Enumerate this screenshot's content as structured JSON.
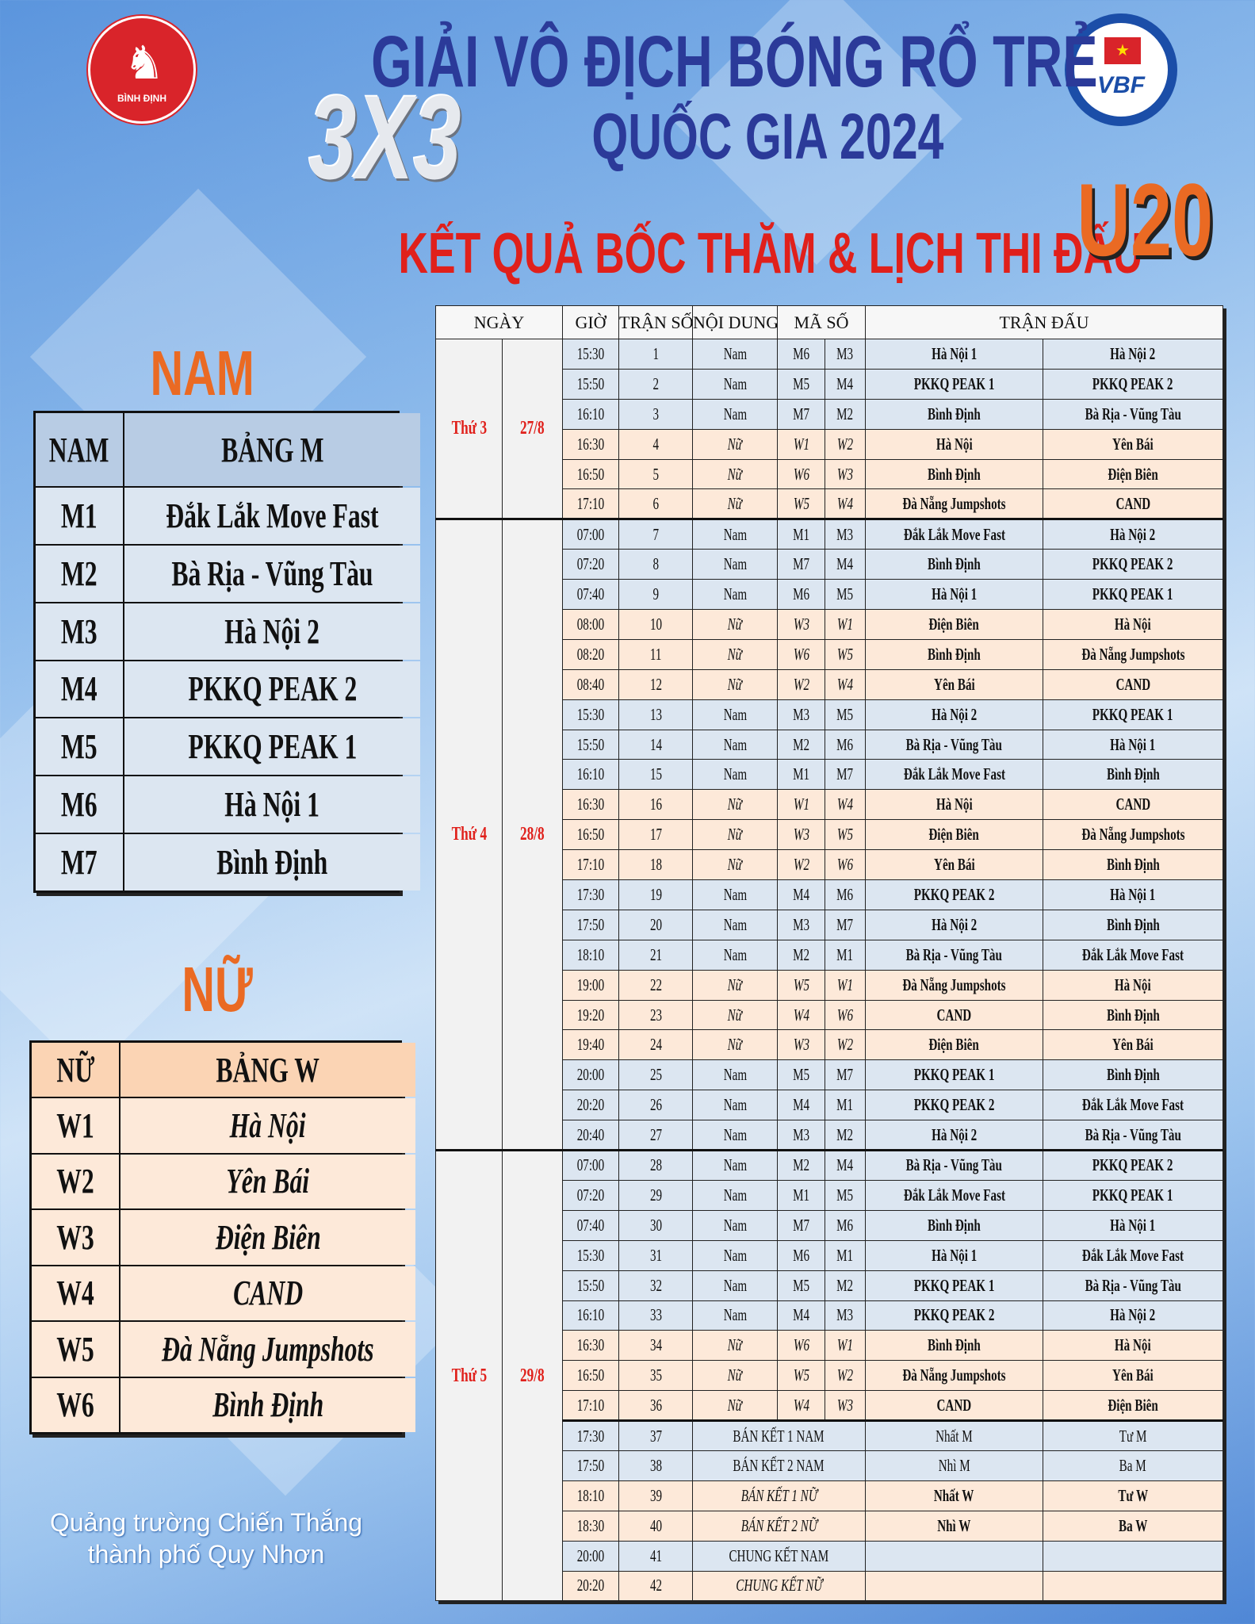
{
  "header": {
    "title_line1": "GIẢI VÔ ĐỊCH BÓNG RỔ TRẺ",
    "title_line2": "QUỐC GIA 2024",
    "format_logo": "3X3",
    "subtitle": "KẾT QUẢ BỐC THĂM & LỊCH THI ĐẤU",
    "age_group": "U20",
    "left_logo_text": "BÌNH ĐỊNH",
    "right_logo_text": "VBF"
  },
  "colors": {
    "title_blue": "#2b3a99",
    "accent_red": "#e0201b",
    "accent_orange": "#ea6a23",
    "men_row": "#dce6f1",
    "women_row": "#fde9d9"
  },
  "men": {
    "title": "NAM",
    "col_code": "NAM",
    "col_group": "BẢNG M",
    "teams": [
      [
        "M1",
        "Đắk Lắk Move Fast"
      ],
      [
        "M2",
        "Bà Rịa - Vũng Tàu"
      ],
      [
        "M3",
        "Hà Nội 2"
      ],
      [
        "M4",
        "PKKQ PEAK 2"
      ],
      [
        "M5",
        "PKKQ PEAK 1"
      ],
      [
        "M6",
        "Hà Nội 1"
      ],
      [
        "M7",
        "Bình Định"
      ]
    ]
  },
  "women": {
    "title": "NỮ",
    "col_code": "NỮ",
    "col_group": "BẢNG W",
    "teams": [
      [
        "W1",
        "Hà Nội"
      ],
      [
        "W2",
        "Yên Bái"
      ],
      [
        "W3",
        "Điện Biên"
      ],
      [
        "W4",
        "CAND"
      ],
      [
        "W5",
        "Đà Nẵng Jumpshots"
      ],
      [
        "W6",
        "Bình Định"
      ]
    ]
  },
  "footer": {
    "line1": "Quảng trường Chiến Thắng",
    "line2": "thành phố Quy Nhơn"
  },
  "schedule": {
    "headers": [
      "NGÀY",
      "GIỜ",
      "TRẬN SỐ",
      "NỘI DUNG",
      "MÃ SỐ",
      "TRẬN ĐẤU"
    ],
    "days": [
      {
        "weekday": "Thứ 3",
        "date": "27/8",
        "from": 1,
        "count": 6
      },
      {
        "weekday": "Thứ 4",
        "date": "28/8",
        "from": 7,
        "count": 21
      },
      {
        "weekday": "Thứ 5",
        "date": "29/8",
        "from": 28,
        "count": 15
      }
    ],
    "rows": [
      [
        "15:30",
        "1",
        "Nam",
        "M6",
        "M3",
        "Hà Nội 1",
        "Hà Nội 2"
      ],
      [
        "15:50",
        "2",
        "Nam",
        "M5",
        "M4",
        "PKKQ PEAK 1",
        "PKKQ PEAK 2"
      ],
      [
        "16:10",
        "3",
        "Nam",
        "M7",
        "M2",
        "Bình Định",
        "Bà Rịa - Vũng Tàu"
      ],
      [
        "16:30",
        "4",
        "Nữ",
        "W1",
        "W2",
        "Hà Nội",
        "Yên Bái"
      ],
      [
        "16:50",
        "5",
        "Nữ",
        "W6",
        "W3",
        "Bình Định",
        "Điện Biên"
      ],
      [
        "17:10",
        "6",
        "Nữ",
        "W5",
        "W4",
        "Đà Nẵng Jumpshots",
        "CAND"
      ],
      [
        "07:00",
        "7",
        "Nam",
        "M1",
        "M3",
        "Đắk Lắk Move Fast",
        "Hà Nội 2"
      ],
      [
        "07:20",
        "8",
        "Nam",
        "M7",
        "M4",
        "Bình Định",
        "PKKQ PEAK 2"
      ],
      [
        "07:40",
        "9",
        "Nam",
        "M6",
        "M5",
        "Hà Nội 1",
        "PKKQ PEAK 1"
      ],
      [
        "08:00",
        "10",
        "Nữ",
        "W3",
        "W1",
        "Điện Biên",
        "Hà Nội"
      ],
      [
        "08:20",
        "11",
        "Nữ",
        "W6",
        "W5",
        "Bình Định",
        "Đà Nẵng Jumpshots"
      ],
      [
        "08:40",
        "12",
        "Nữ",
        "W2",
        "W4",
        "Yên Bái",
        "CAND"
      ],
      [
        "15:30",
        "13",
        "Nam",
        "M3",
        "M5",
        "Hà Nội 2",
        "PKKQ PEAK 1"
      ],
      [
        "15:50",
        "14",
        "Nam",
        "M2",
        "M6",
        "Bà Rịa - Vũng Tàu",
        "Hà Nội 1"
      ],
      [
        "16:10",
        "15",
        "Nam",
        "M1",
        "M7",
        "Đắk Lắk Move Fast",
        "Bình Định"
      ],
      [
        "16:30",
        "16",
        "Nữ",
        "W1",
        "W4",
        "Hà Nội",
        "CAND"
      ],
      [
        "16:50",
        "17",
        "Nữ",
        "W3",
        "W5",
        "Điện Biên",
        "Đà Nẵng Jumpshots"
      ],
      [
        "17:10",
        "18",
        "Nữ",
        "W2",
        "W6",
        "Yên Bái",
        "Bình Định"
      ],
      [
        "17:30",
        "19",
        "Nam",
        "M4",
        "M6",
        "PKKQ PEAK 2",
        "Hà Nội 1"
      ],
      [
        "17:50",
        "20",
        "Nam",
        "M3",
        "M7",
        "Hà Nội 2",
        "Bình Định"
      ],
      [
        "18:10",
        "21",
        "Nam",
        "M2",
        "M1",
        "Bà Rịa - Vũng Tàu",
        "Đắk Lắk Move Fast"
      ],
      [
        "19:00",
        "22",
        "Nữ",
        "W5",
        "W1",
        "Đà Nẵng Jumpshots",
        "Hà Nội"
      ],
      [
        "19:20",
        "23",
        "Nữ",
        "W4",
        "W6",
        "CAND",
        "Bình Định"
      ],
      [
        "19:40",
        "24",
        "Nữ",
        "W3",
        "W2",
        "Điện Biên",
        "Yên Bái"
      ],
      [
        "20:00",
        "25",
        "Nam",
        "M5",
        "M7",
        "PKKQ PEAK 1",
        "Bình Định"
      ],
      [
        "20:20",
        "26",
        "Nam",
        "M4",
        "M1",
        "PKKQ PEAK 2",
        "Đắk Lắk Move Fast"
      ],
      [
        "20:40",
        "27",
        "Nam",
        "M3",
        "M2",
        "Hà Nội 2",
        "Bà Rịa - Vũng Tàu"
      ],
      [
        "07:00",
        "28",
        "Nam",
        "M2",
        "M4",
        "Bà Rịa - Vũng Tàu",
        "PKKQ PEAK 2"
      ],
      [
        "07:20",
        "29",
        "Nam",
        "M1",
        "M5",
        "Đắk Lắk Move Fast",
        "PKKQ PEAK 1"
      ],
      [
        "07:40",
        "30",
        "Nam",
        "M7",
        "M6",
        "Bình Định",
        "Hà Nội 1"
      ],
      [
        "15:30",
        "31",
        "Nam",
        "M6",
        "M1",
        "Hà Nội 1",
        "Đắk Lắk Move Fast"
      ],
      [
        "15:50",
        "32",
        "Nam",
        "M5",
        "M2",
        "PKKQ PEAK 1",
        "Bà Rịa - Vũng Tàu"
      ],
      [
        "16:10",
        "33",
        "Nam",
        "M4",
        "M3",
        "PKKQ PEAK 2",
        "Hà Nội 2"
      ],
      [
        "16:30",
        "34",
        "Nữ",
        "W6",
        "W1",
        "Bình Định",
        "Hà Nội"
      ],
      [
        "16:50",
        "35",
        "Nữ",
        "W5",
        "W2",
        "Đà Nẵng Jumpshots",
        "Yên Bái"
      ],
      [
        "17:10",
        "36",
        "Nữ",
        "W4",
        "W3",
        "CAND",
        "Điện Biên"
      ]
    ],
    "finals": [
      {
        "time": "17:30",
        "no": "37",
        "label": "BÁN KẾT 1 NAM",
        "team1": "Nhất M",
        "team2": "Tư M",
        "gender": "m"
      },
      {
        "time": "17:50",
        "no": "38",
        "label": "BÁN KẾT 2 NAM",
        "team1": "Nhì M",
        "team2": "Ba M",
        "gender": "m"
      },
      {
        "time": "18:10",
        "no": "39",
        "label": "BÁN KẾT 1 NỮ",
        "team1": "Nhất W",
        "team2": "Tư W",
        "gender": "w"
      },
      {
        "time": "18:30",
        "no": "40",
        "label": "BÁN KẾT 2 NỮ",
        "team1": "Nhì W",
        "team2": "Ba W",
        "gender": "w"
      },
      {
        "time": "20:00",
        "no": "41",
        "label": "CHUNG KẾT NAM",
        "team1": "",
        "team2": "",
        "gender": "m"
      },
      {
        "time": "20:20",
        "no": "42",
        "label": "CHUNG KẾT NỮ",
        "team1": "",
        "team2": "",
        "gender": "w"
      }
    ]
  }
}
